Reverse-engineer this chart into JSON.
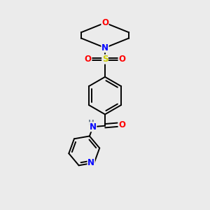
{
  "background_color": "#ebebeb",
  "bond_color": "#000000",
  "atom_colors": {
    "O": "#ff0000",
    "N": "#0000ff",
    "S": "#cccc00",
    "C": "#000000",
    "H": "#708090"
  },
  "figsize": [
    3.0,
    3.0
  ],
  "dpi": 100,
  "lw": 1.4,
  "fs": 8.5
}
